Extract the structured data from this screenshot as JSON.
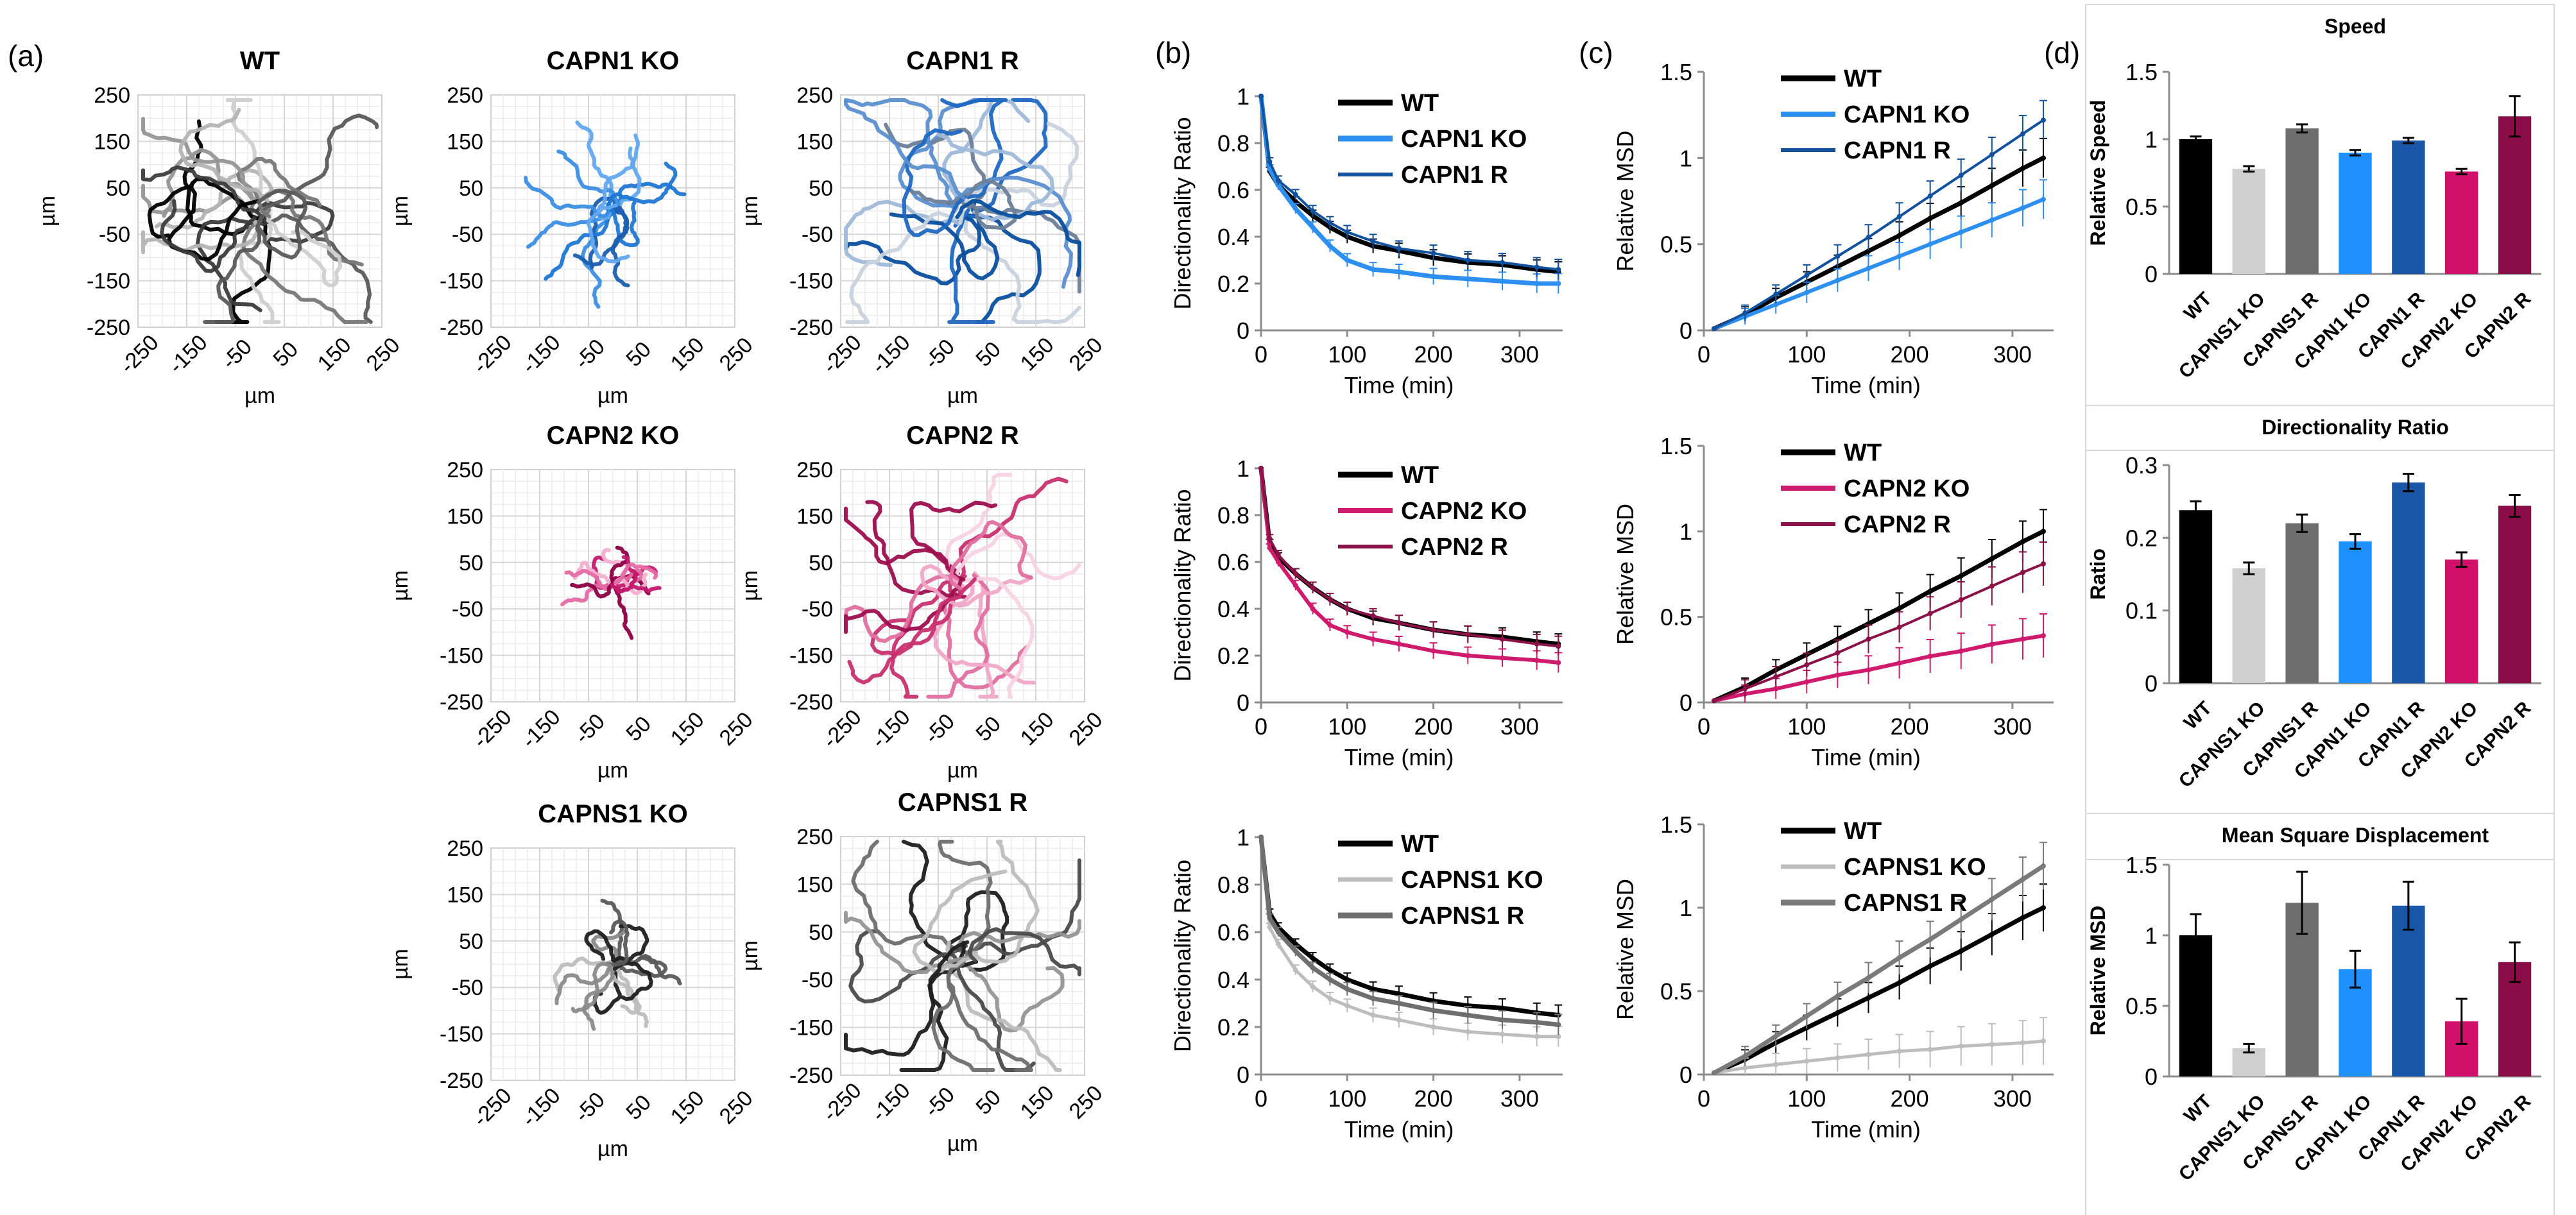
{
  "panel_labels": {
    "a": "(a)",
    "b": "(b)",
    "c": "(c)",
    "d": "(d)"
  },
  "chart_data": [
    {
      "id": "traj-wt",
      "type": "scatter",
      "title": "WT",
      "xlabel": "µm",
      "ylabel": "µm",
      "xlim": [
        -250,
        250
      ],
      "ylim": [
        -250,
        250
      ],
      "ticks": [
        -250,
        -150,
        -50,
        50,
        150,
        250
      ],
      "spread": 1.0,
      "colors": [
        "#000000",
        "#3c3c3c",
        "#5a5a5a",
        "#787878",
        "#969696",
        "#b4b4b4",
        "#cfcfcf"
      ],
      "seed": 11
    },
    {
      "id": "traj-capn1-ko",
      "type": "scatter",
      "title": "CAPN1 KO",
      "xlabel": "µm",
      "ylabel": "µm",
      "xlim": [
        -250,
        250
      ],
      "ylim": [
        -250,
        250
      ],
      "ticks": [
        -250,
        -150,
        -50,
        50,
        150,
        250
      ],
      "spread": 0.55,
      "colors": [
        "#1f77d4",
        "#3b8fe3",
        "#62a8ef",
        "#1a5fb0"
      ],
      "seed": 23
    },
    {
      "id": "traj-capn1-r",
      "type": "scatter",
      "title": "CAPN1 R",
      "xlabel": "µm",
      "ylabel": "µm",
      "xlim": [
        -250,
        250
      ],
      "ylim": [
        -250,
        250
      ],
      "ticks": [
        -250,
        -150,
        -50,
        50,
        150,
        250
      ],
      "spread": 1.15,
      "colors": [
        "#0a4f9e",
        "#1f68c1",
        "#5a8fd0",
        "#9fb9d9",
        "#c8d2dd",
        "#6d7f99"
      ],
      "seed": 37
    },
    {
      "id": "traj-capn2-ko",
      "type": "scatter",
      "title": "CAPN2 KO",
      "xlabel": "µm",
      "ylabel": "µm",
      "xlim": [
        -250,
        250
      ],
      "ylim": [
        -250,
        250
      ],
      "ticks": [
        -250,
        -150,
        -50,
        50,
        150,
        250
      ],
      "spread": 0.3,
      "colors": [
        "#8e0046",
        "#c4186e",
        "#e46aa3",
        "#f3b0cf"
      ],
      "seed": 41
    },
    {
      "id": "traj-capn2-r",
      "type": "scatter",
      "title": "CAPN2 R",
      "xlabel": "µm",
      "ylabel": "µm",
      "xlim": [
        -250,
        250
      ],
      "ylim": [
        -250,
        250
      ],
      "ticks": [
        -250,
        -150,
        -50,
        50,
        150,
        250
      ],
      "spread": 1.0,
      "colors": [
        "#9d0e4e",
        "#c8306f",
        "#e06fa0",
        "#f1a8c8",
        "#f8d3e3"
      ],
      "seed": 53
    },
    {
      "id": "traj-capns1-ko",
      "type": "scatter",
      "title": "CAPNS1 KO",
      "xlabel": "µm",
      "ylabel": "µm",
      "xlim": [
        -250,
        250
      ],
      "ylim": [
        -250,
        250
      ],
      "ticks": [
        -250,
        -150,
        -50,
        50,
        150,
        250
      ],
      "spread": 0.45,
      "colors": [
        "#1e1e1e",
        "#5a5a5a",
        "#8a8a8a",
        "#bdbdbd"
      ],
      "seed": 61
    },
    {
      "id": "traj-capns1-r",
      "type": "scatter",
      "title": "CAPNS1 R",
      "xlabel": "µm",
      "ylabel": "µm",
      "xlim": [
        -250,
        250
      ],
      "ylim": [
        -250,
        250
      ],
      "ticks": [
        -250,
        -150,
        -50,
        50,
        150,
        250
      ],
      "spread": 1.1,
      "colors": [
        "#1e1e1e",
        "#4a4a4a",
        "#6e6e6e",
        "#959595",
        "#bdbdbd"
      ],
      "seed": 71
    },
    {
      "id": "dr-capn1",
      "type": "line",
      "xlabel": "Time (min)",
      "ylabel": "Directionality Ratio",
      "xlim": [
        0,
        350
      ],
      "ylim": [
        0,
        1
      ],
      "xticks": [
        0,
        100,
        200,
        300
      ],
      "yticks": [
        0,
        0.2,
        0.4,
        0.6,
        0.8,
        1
      ],
      "x": [
        0,
        10,
        20,
        40,
        60,
        80,
        100,
        130,
        160,
        200,
        240,
        280,
        320,
        345
      ],
      "series": [
        {
          "name": "WT",
          "color": "#000000",
          "width": 7,
          "values": [
            1,
            0.68,
            0.62,
            0.55,
            0.49,
            0.44,
            0.4,
            0.36,
            0.34,
            0.31,
            0.29,
            0.28,
            0.26,
            0.25
          ]
        },
        {
          "name": "CAPN1 KO",
          "color": "#2d8ff0",
          "width": 7,
          "values": [
            1,
            0.69,
            0.62,
            0.52,
            0.44,
            0.36,
            0.3,
            0.26,
            0.25,
            0.23,
            0.22,
            0.21,
            0.2,
            0.2
          ]
        },
        {
          "name": "CAPN1 R",
          "color": "#11519e",
          "width": 4,
          "values": [
            1,
            0.72,
            0.64,
            0.58,
            0.51,
            0.46,
            0.42,
            0.38,
            0.35,
            0.33,
            0.3,
            0.29,
            0.27,
            0.26
          ]
        }
      ],
      "errorbar": 0.03
    },
    {
      "id": "dr-capn2",
      "type": "line",
      "xlabel": "Time (min)",
      "ylabel": "Directionality Ratio",
      "xlim": [
        0,
        350
      ],
      "ylim": [
        0,
        1
      ],
      "xticks": [
        0,
        100,
        200,
        300
      ],
      "yticks": [
        0,
        0.2,
        0.4,
        0.6,
        0.8,
        1
      ],
      "x": [
        0,
        10,
        20,
        40,
        60,
        80,
        100,
        130,
        160,
        200,
        240,
        280,
        320,
        345
      ],
      "series": [
        {
          "name": "WT",
          "color": "#000000",
          "width": 7,
          "values": [
            1,
            0.68,
            0.62,
            0.55,
            0.49,
            0.44,
            0.4,
            0.36,
            0.34,
            0.31,
            0.29,
            0.28,
            0.26,
            0.25
          ]
        },
        {
          "name": "CAPN2 KO",
          "color": "#d01a6d",
          "width": 6,
          "values": [
            1,
            0.66,
            0.6,
            0.5,
            0.4,
            0.33,
            0.3,
            0.27,
            0.25,
            0.22,
            0.2,
            0.19,
            0.18,
            0.17
          ]
        },
        {
          "name": "CAPN2 R",
          "color": "#8c1148",
          "width": 4,
          "values": [
            1,
            0.7,
            0.63,
            0.55,
            0.49,
            0.44,
            0.4,
            0.37,
            0.34,
            0.31,
            0.29,
            0.27,
            0.25,
            0.24
          ]
        }
      ],
      "errorbar": 0.03
    },
    {
      "id": "dr-capns1",
      "type": "line",
      "xlabel": "Time (min)",
      "ylabel": "Directionality Ratio",
      "xlim": [
        0,
        350
      ],
      "ylim": [
        0,
        1
      ],
      "xticks": [
        0,
        100,
        200,
        300
      ],
      "yticks": [
        0,
        0.2,
        0.4,
        0.6,
        0.8,
        1
      ],
      "x": [
        0,
        10,
        20,
        40,
        60,
        80,
        100,
        130,
        160,
        200,
        240,
        280,
        320,
        345
      ],
      "series": [
        {
          "name": "WT",
          "color": "#000000",
          "width": 7,
          "values": [
            1,
            0.68,
            0.62,
            0.55,
            0.49,
            0.44,
            0.4,
            0.36,
            0.34,
            0.31,
            0.29,
            0.28,
            0.26,
            0.25
          ]
        },
        {
          "name": "CAPNS1 KO",
          "color": "#bdbdbd",
          "width": 5,
          "values": [
            1,
            0.62,
            0.55,
            0.44,
            0.37,
            0.32,
            0.29,
            0.25,
            0.23,
            0.2,
            0.18,
            0.17,
            0.16,
            0.16
          ]
        },
        {
          "name": "CAPNS1 R",
          "color": "#6f6f6f",
          "width": 7,
          "values": [
            1,
            0.66,
            0.6,
            0.52,
            0.45,
            0.4,
            0.36,
            0.32,
            0.3,
            0.27,
            0.25,
            0.23,
            0.22,
            0.21
          ]
        }
      ],
      "errorbar": 0.03
    },
    {
      "id": "msd-capn1",
      "type": "line",
      "xlabel": "Time (min)",
      "ylabel": "Relative MSD",
      "xlim": [
        0,
        340
      ],
      "ylim": [
        0,
        1.5
      ],
      "xticks": [
        0,
        100,
        200,
        300
      ],
      "yticks": [
        0,
        0.5,
        1,
        1.5
      ],
      "x": [
        10,
        40,
        70,
        100,
        130,
        160,
        190,
        220,
        250,
        280,
        310,
        330
      ],
      "series": [
        {
          "name": "WT",
          "color": "#000000",
          "width": 7,
          "values": [
            0.01,
            0.09,
            0.19,
            0.28,
            0.37,
            0.46,
            0.55,
            0.65,
            0.74,
            0.84,
            0.94,
            1.0
          ]
        },
        {
          "name": "CAPN1 KO",
          "color": "#2d8ff0",
          "width": 6,
          "values": [
            0.01,
            0.08,
            0.15,
            0.22,
            0.29,
            0.36,
            0.43,
            0.5,
            0.57,
            0.64,
            0.71,
            0.76
          ]
        },
        {
          "name": "CAPN1 R",
          "color": "#11519e",
          "width": 4,
          "values": [
            0.01,
            0.1,
            0.21,
            0.32,
            0.43,
            0.54,
            0.66,
            0.78,
            0.9,
            1.02,
            1.14,
            1.22
          ]
        }
      ],
      "errorbar": 0.08
    },
    {
      "id": "msd-capn2",
      "type": "line",
      "xlabel": "Time (min)",
      "ylabel": "Relative MSD",
      "xlim": [
        0,
        340
      ],
      "ylim": [
        0,
        1.5
      ],
      "xticks": [
        0,
        100,
        200,
        300
      ],
      "yticks": [
        0,
        0.5,
        1,
        1.5
      ],
      "x": [
        10,
        40,
        70,
        100,
        130,
        160,
        190,
        220,
        250,
        280,
        310,
        330
      ],
      "series": [
        {
          "name": "WT",
          "color": "#000000",
          "width": 7,
          "values": [
            0.01,
            0.09,
            0.19,
            0.28,
            0.37,
            0.46,
            0.55,
            0.65,
            0.74,
            0.84,
            0.94,
            1.0
          ]
        },
        {
          "name": "CAPN2 KO",
          "color": "#d01a6d",
          "width": 6,
          "values": [
            0.01,
            0.05,
            0.08,
            0.12,
            0.16,
            0.19,
            0.23,
            0.27,
            0.3,
            0.34,
            0.37,
            0.39
          ]
        },
        {
          "name": "CAPN2 R",
          "color": "#8c1148",
          "width": 4,
          "values": [
            0.01,
            0.08,
            0.15,
            0.22,
            0.29,
            0.37,
            0.44,
            0.52,
            0.6,
            0.68,
            0.76,
            0.81
          ]
        }
      ],
      "errorbar": 0.09
    },
    {
      "id": "msd-capns1",
      "type": "line",
      "xlabel": "Time (min)",
      "ylabel": "Relative MSD",
      "xlim": [
        0,
        340
      ],
      "ylim": [
        0,
        1.5
      ],
      "xticks": [
        0,
        100,
        200,
        300
      ],
      "yticks": [
        0,
        0.5,
        1,
        1.5
      ],
      "x": [
        10,
        40,
        70,
        100,
        130,
        160,
        190,
        220,
        250,
        280,
        310,
        330
      ],
      "series": [
        {
          "name": "WT",
          "color": "#000000",
          "width": 7,
          "values": [
            0.01,
            0.09,
            0.19,
            0.28,
            0.37,
            0.46,
            0.55,
            0.65,
            0.74,
            0.84,
            0.94,
            1.0
          ]
        },
        {
          "name": "CAPNS1 KO",
          "color": "#bdbdbd",
          "width": 5,
          "values": [
            0.01,
            0.04,
            0.06,
            0.08,
            0.1,
            0.12,
            0.14,
            0.15,
            0.17,
            0.18,
            0.19,
            0.2
          ]
        },
        {
          "name": "CAPNS1 R",
          "color": "#7a7a7a",
          "width": 7,
          "values": [
            0.01,
            0.11,
            0.23,
            0.35,
            0.47,
            0.58,
            0.7,
            0.81,
            0.93,
            1.05,
            1.17,
            1.25
          ]
        }
      ],
      "errorbar": 0.1
    },
    {
      "id": "bar-speed",
      "type": "bar",
      "title": "Speed",
      "ylabel": "Relative Speed",
      "categories": [
        "WT",
        "CAPNS1 KO",
        "CAPNS1 R",
        "CAPN1 KO",
        "CAPN1 R",
        "CAPN2 KO",
        "CAPN2 R"
      ],
      "values": [
        1.0,
        0.78,
        1.08,
        0.9,
        0.99,
        0.76,
        1.17
      ],
      "errors": [
        0.02,
        0.02,
        0.03,
        0.02,
        0.02,
        0.02,
        0.15
      ],
      "colors": [
        "#000000",
        "#cfcfcf",
        "#6e6e6e",
        "#1e90ff",
        "#1a56a8",
        "#d0106a",
        "#8b0d47"
      ],
      "ylim": [
        0,
        1.5
      ],
      "yticks": [
        0,
        0.5,
        1,
        1.5
      ]
    },
    {
      "id": "bar-dr",
      "type": "bar",
      "title": "Directionality Ratio",
      "ylabel": "Ratio",
      "categories": [
        "WT",
        "CAPNS1 KO",
        "CAPNS1 R",
        "CAPN1 KO",
        "CAPN1 R",
        "CAPN2 KO",
        "CAPN2 R"
      ],
      "values": [
        0.238,
        0.158,
        0.22,
        0.195,
        0.276,
        0.17,
        0.244
      ],
      "errors": [
        0.012,
        0.008,
        0.012,
        0.01,
        0.012,
        0.01,
        0.015
      ],
      "colors": [
        "#000000",
        "#cfcfcf",
        "#6e6e6e",
        "#1e90ff",
        "#1a56a8",
        "#d0106a",
        "#8b0d47"
      ],
      "ylim": [
        0,
        0.3
      ],
      "yticks": [
        0,
        0.1,
        0.2,
        0.3
      ]
    },
    {
      "id": "bar-msd",
      "type": "bar",
      "title": "Mean Square Displacement",
      "ylabel": "Relative MSD",
      "categories": [
        "WT",
        "CAPNS1 KO",
        "CAPNS1 R",
        "CAPN1 KO",
        "CAPN1 R",
        "CAPN2 KO",
        "CAPN2 R"
      ],
      "values": [
        1.0,
        0.2,
        1.23,
        0.76,
        1.21,
        0.39,
        0.81
      ],
      "errors": [
        0.15,
        0.03,
        0.22,
        0.13,
        0.17,
        0.16,
        0.14
      ],
      "colors": [
        "#000000",
        "#cfcfcf",
        "#6e6e6e",
        "#1e90ff",
        "#1a56a8",
        "#d0106a",
        "#8b0d47"
      ],
      "ylim": [
        0,
        1.5
      ],
      "yticks": [
        0,
        0.5,
        1,
        1.5
      ]
    }
  ]
}
